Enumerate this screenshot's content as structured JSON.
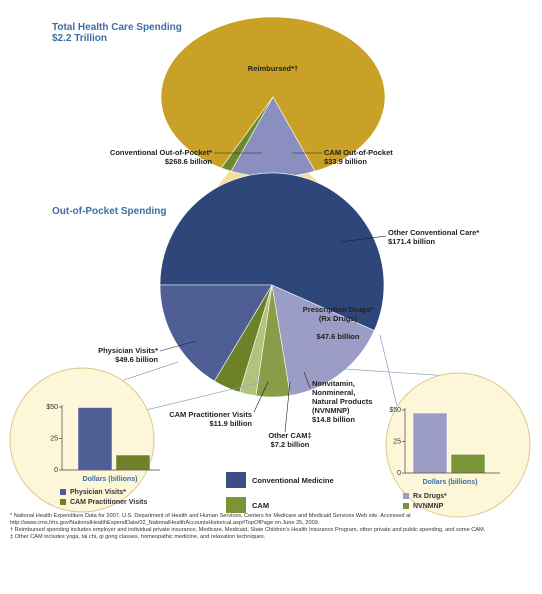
{
  "chart_data": [
    {
      "type": "pie",
      "title": "Total Health Care Spending",
      "subtitle": "$2.2 Trillion",
      "categories": [
        "Reimbursed*†",
        "Conventional Out-of-Pocket*",
        "CAM Out-of-Pocket"
      ],
      "values": [
        1897.5,
        268.6,
        33.9
      ],
      "value_labels": [
        null,
        "$268.6 billion",
        "$33.9 billion"
      ],
      "colors": [
        "#c9a126",
        "#8b8fbf",
        "#6d8a2a"
      ]
    },
    {
      "type": "pie",
      "title": "Out-of-Pocket Spending",
      "categories": [
        "Other Conventional Care*",
        "Prescription Drugs*\n(Rx Drugs)",
        "Nonvitamin,\nNonmineral,\nNatural Products\n(NVNMNP)",
        "Other CAM‡",
        "CAM Practitioner Visits",
        "Physician Visits*"
      ],
      "values": [
        171.4,
        47.6,
        14.8,
        7.2,
        11.9,
        49.6
      ],
      "value_labels": [
        "$171.4 billion",
        "$47.6 billion",
        "$14.8 billion",
        "$7.2 billion",
        "$11.9 billion",
        "$49.6 billion"
      ],
      "colors": [
        "#2e4679",
        "#9b9dc6",
        "#8a9c48",
        "#b4c27e",
        "#6c8128",
        "#4f5f95"
      ],
      "legend": [
        {
          "name": "Conventional Medicine",
          "color": "#3b4f86"
        },
        {
          "name": "CAM",
          "color": "#7a9436"
        }
      ]
    },
    {
      "type": "bar",
      "xlabel": "Dollars (billions)",
      "categories": [
        "Physician Visits*",
        "CAM Practitioner Visits"
      ],
      "values": [
        49.6,
        11.9
      ],
      "colors": [
        "#4f5f95",
        "#6c8128"
      ],
      "ylim": [
        0,
        50
      ],
      "yticks": [
        0,
        25,
        {
          "value": 50,
          "label": "$50"
        }
      ]
    },
    {
      "type": "bar",
      "xlabel": "Dollars (billions)",
      "categories": [
        "Rx Drugs*",
        "NVNMNP"
      ],
      "values": [
        47.6,
        14.8
      ],
      "colors": [
        "#9b9dc6",
        "#7a9436"
      ],
      "ylim": [
        0,
        50
      ],
      "yticks": [
        0,
        25,
        {
          "value": 50,
          "label": "$50"
        }
      ]
    }
  ],
  "footnotes": [
    "* National Health Expenditure Data for 2007. U.S. Department of Health and Human Services, Centers for Medicare and Medicaid Services Web site. Accessed at http://www.cms.hhs.gov/NationalHealthExpendData/02_NationalHealthAccountsHistorical.asp#TopOfPage on June 25, 2009.",
    "† Reimbursed spending includes employer and individual private insurance, Medicare, Medicaid, State Children's Health Insurance Program, other private and public spending, and some CAM.",
    "‡ Other CAM includes yoga, tai chi, qi gong classes, homeopathic medicine, and relaxation techniques."
  ]
}
